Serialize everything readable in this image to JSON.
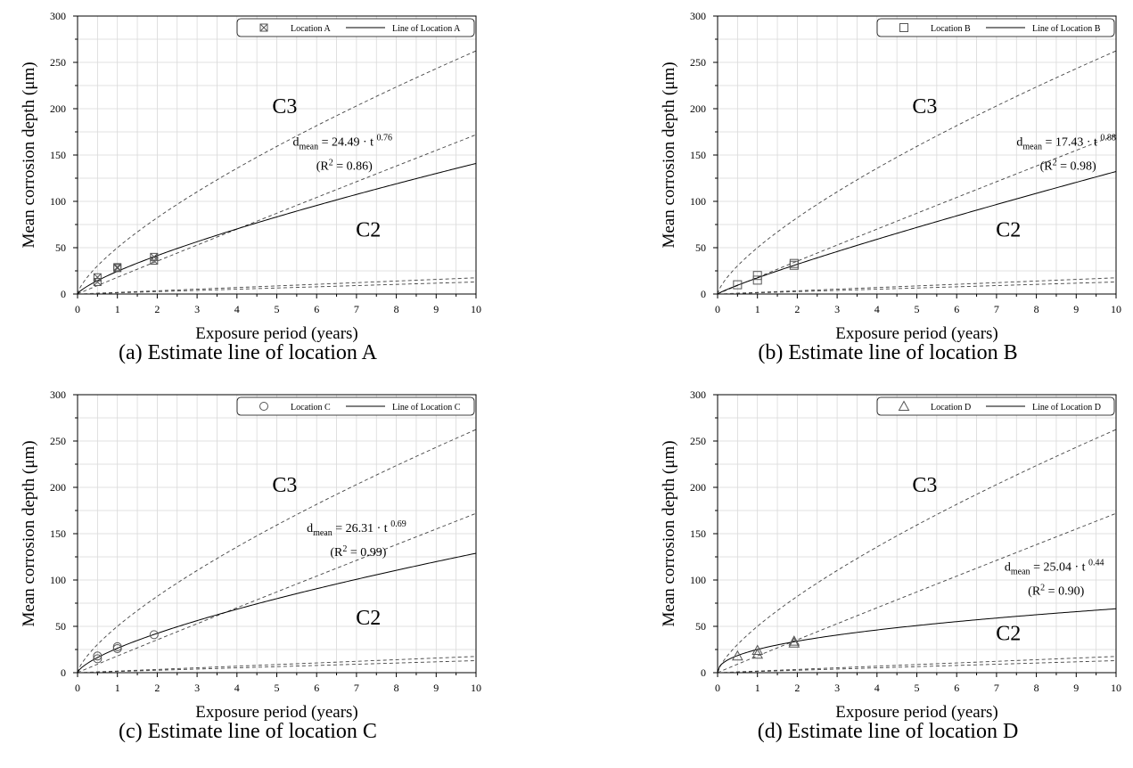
{
  "chart_data": [
    {
      "type": "scatter",
      "caption": "(a) Estimate line of location A",
      "xlabel": "Exposure period (years)",
      "ylabel": "Mean corrosion depth (μm)",
      "xlim": [
        0,
        10
      ],
      "ylim": [
        0,
        300
      ],
      "xticks": [
        "0",
        "1",
        "2",
        "3",
        "4",
        "5",
        "6",
        "7",
        "8",
        "9",
        "10"
      ],
      "yticks": [
        "0",
        "50",
        "100",
        "150",
        "200",
        "250",
        "300"
      ],
      "grid": true,
      "legend_position": "top-right",
      "marker": "x-square",
      "series": [
        {
          "name": "Location A",
          "kind": "points",
          "points": [
            [
              0.5,
              13
            ],
            [
              0.5,
              18
            ],
            [
              1.0,
              29
            ],
            [
              1.0,
              28
            ],
            [
              1.92,
              36
            ],
            [
              1.92,
              40
            ]
          ]
        },
        {
          "name": "Line of Location A",
          "kind": "power",
          "a": 24.49,
          "b": 0.76
        }
      ],
      "boundaries": [
        {
          "kind": "power",
          "a": 1.3,
          "b": 1.0
        },
        {
          "kind": "power",
          "a": 50,
          "b": 0.72
        },
        {
          "kind": "power",
          "a": 18,
          "b": 0.98
        },
        {
          "kind": "linear",
          "slope": 1.75
        }
      ],
      "equation": {
        "prefix": "d",
        "sub": "mean",
        "body": " = 24.49 · t ",
        "exp": "0.76"
      },
      "r2": {
        "open": "(R",
        "sup": "2",
        "close": " = 0.86)"
      },
      "zones": [
        {
          "label": "C3",
          "x": 5.2,
          "y": 195
        },
        {
          "label": "C2",
          "x": 7.3,
          "y": 62
        }
      ],
      "equation_pos": {
        "x": 6.65,
        "y": 160
      }
    },
    {
      "type": "scatter",
      "caption": "(b) Estimate line of location B",
      "xlabel": "Exposure period (years)",
      "ylabel": "Mean corrosion depth (μm)",
      "xlim": [
        0,
        10
      ],
      "ylim": [
        0,
        300
      ],
      "xticks": [
        "0",
        "1",
        "2",
        "3",
        "4",
        "5",
        "6",
        "7",
        "8",
        "9",
        "10"
      ],
      "yticks": [
        "0",
        "50",
        "100",
        "150",
        "200",
        "250",
        "300"
      ],
      "grid": true,
      "legend_position": "top-right",
      "marker": "square",
      "series": [
        {
          "name": "Location B",
          "kind": "points",
          "points": [
            [
              0.5,
              10
            ],
            [
              1.0,
              15
            ],
            [
              1.0,
              20
            ],
            [
              1.92,
              31
            ],
            [
              1.92,
              33
            ]
          ]
        },
        {
          "name": "Line of Location B",
          "kind": "power",
          "a": 17.43,
          "b": 0.88
        }
      ],
      "boundaries": [
        {
          "kind": "power",
          "a": 1.3,
          "b": 1.0
        },
        {
          "kind": "power",
          "a": 50,
          "b": 0.72
        },
        {
          "kind": "power",
          "a": 18,
          "b": 0.98
        },
        {
          "kind": "linear",
          "slope": 1.75
        }
      ],
      "equation": {
        "prefix": "d",
        "sub": "mean",
        "body": " = 17.43 · t ",
        "exp": "0.88"
      },
      "r2": {
        "open": "(R",
        "sup": "2",
        "close": " = 0.98)"
      },
      "zones": [
        {
          "label": "C3",
          "x": 5.2,
          "y": 195
        },
        {
          "label": "C2",
          "x": 7.3,
          "y": 62
        }
      ],
      "equation_pos": {
        "x": 8.75,
        "y": 160
      }
    },
    {
      "type": "scatter",
      "caption": "(c) Estimate line of location C",
      "xlabel": "Exposure period (years)",
      "ylabel": "Mean corrosion depth (μm)",
      "xlim": [
        0,
        10
      ],
      "ylim": [
        0,
        300
      ],
      "xticks": [
        "0",
        "1",
        "2",
        "3",
        "4",
        "5",
        "6",
        "7",
        "8",
        "9",
        "10"
      ],
      "yticks": [
        "0",
        "50",
        "100",
        "150",
        "200",
        "250",
        "300"
      ],
      "grid": true,
      "legend_position": "top-right",
      "marker": "circle",
      "series": [
        {
          "name": "Location C",
          "kind": "points",
          "points": [
            [
              0.5,
              15
            ],
            [
              0.5,
              18
            ],
            [
              1.0,
              26
            ],
            [
              1.0,
              28
            ],
            [
              1.92,
              41
            ]
          ]
        },
        {
          "name": "Line of Location C",
          "kind": "power",
          "a": 26.31,
          "b": 0.69
        }
      ],
      "boundaries": [
        {
          "kind": "power",
          "a": 1.3,
          "b": 1.0
        },
        {
          "kind": "power",
          "a": 50,
          "b": 0.72
        },
        {
          "kind": "power",
          "a": 18,
          "b": 0.98
        },
        {
          "kind": "linear",
          "slope": 1.75
        }
      ],
      "equation": {
        "prefix": "d",
        "sub": "mean",
        "body": " = 26.31 · t ",
        "exp": "0.69"
      },
      "r2": {
        "open": "(R",
        "sup": "2",
        "close": " = 0.99)"
      },
      "zones": [
        {
          "label": "C3",
          "x": 5.2,
          "y": 195
        },
        {
          "label": "C2",
          "x": 7.3,
          "y": 52
        }
      ],
      "equation_pos": {
        "x": 7.0,
        "y": 152
      }
    },
    {
      "type": "scatter",
      "caption": "(d) Estimate line of location D",
      "xlabel": "Exposure period (years)",
      "ylabel": "Mean corrosion depth (μm)",
      "xlim": [
        0,
        10
      ],
      "ylim": [
        0,
        300
      ],
      "xticks": [
        "0",
        "1",
        "2",
        "3",
        "4",
        "5",
        "6",
        "7",
        "8",
        "9",
        "10"
      ],
      "yticks": [
        "0",
        "50",
        "100",
        "150",
        "200",
        "250",
        "300"
      ],
      "grid": true,
      "legend_position": "top-right",
      "marker": "triangle",
      "series": [
        {
          "name": "Location D",
          "kind": "points",
          "points": [
            [
              0.5,
              18
            ],
            [
              1.0,
              20
            ],
            [
              1.0,
              24
            ],
            [
              1.92,
              32
            ],
            [
              1.92,
              34
            ]
          ]
        },
        {
          "name": "Line of Location D",
          "kind": "power",
          "a": 25.04,
          "b": 0.44
        }
      ],
      "boundaries": [
        {
          "kind": "power",
          "a": 1.3,
          "b": 1.0
        },
        {
          "kind": "power",
          "a": 50,
          "b": 0.72
        },
        {
          "kind": "power",
          "a": 18,
          "b": 0.98
        },
        {
          "kind": "linear",
          "slope": 1.75
        }
      ],
      "equation": {
        "prefix": "d",
        "sub": "mean",
        "body": " = 25.04 · t ",
        "exp": "0.44"
      },
      "r2": {
        "open": "(R",
        "sup": "2",
        "close": " = 0.90)"
      },
      "zones": [
        {
          "label": "C3",
          "x": 5.2,
          "y": 195
        },
        {
          "label": "C2",
          "x": 7.3,
          "y": 35
        }
      ],
      "equation_pos": {
        "x": 8.45,
        "y": 110
      }
    }
  ]
}
